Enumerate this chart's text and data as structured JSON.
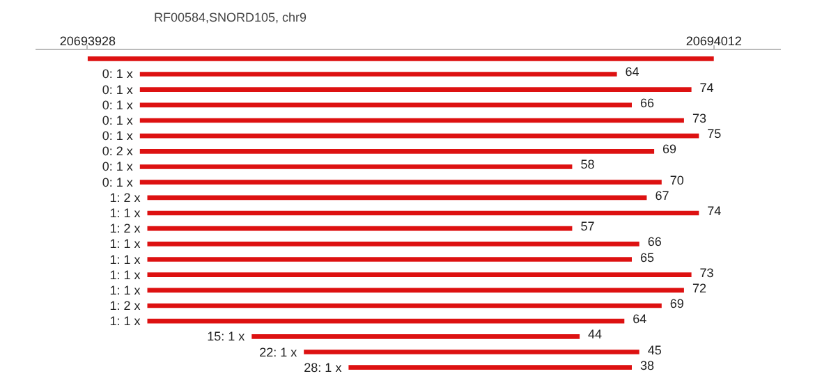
{
  "chart_data": {
    "type": "bar",
    "orientation": "horizontal",
    "title": "RF00584,SNORD105, chr9",
    "categories": [
      null,
      "0: 1 x",
      "0: 1 x",
      "0: 1 x",
      "0: 1 x",
      "0: 1 x",
      "0: 2 x",
      "0: 1 x",
      "0: 1 x",
      "1: 2 x",
      "1: 1 x",
      "1: 2 x",
      "1: 1 x",
      "1: 1 x",
      "1: 1 x",
      "1: 1 x",
      "1: 2 x",
      "1: 1 x",
      "15: 1 x",
      "22: 1 x",
      "28: 1 x"
    ],
    "base": [
      20693928,
      20693935,
      20693935,
      20693935,
      20693935,
      20693935,
      20693935,
      20693935,
      20693935,
      20693936,
      20693936,
      20693936,
      20693936,
      20693936,
      20693936,
      20693936,
      20693936,
      20693936,
      20693950,
      20693957,
      20693963
    ],
    "values": [
      84,
      64,
      74,
      66,
      73,
      75,
      69,
      58,
      70,
      67,
      74,
      57,
      66,
      65,
      73,
      72,
      69,
      64,
      44,
      45,
      38
    ],
    "value_labels": [
      null,
      "64",
      "74",
      "66",
      "73",
      "75",
      "69",
      "58",
      "70",
      "67",
      "74",
      "57",
      "66",
      "65",
      "73",
      "72",
      "69",
      "64",
      "44",
      "45",
      "38"
    ],
    "color": "#dd1111",
    "xlim": [
      20693921,
      20694021
    ],
    "xticks": [
      20693928,
      20694012
    ],
    "tick_labels": "x",
    "grid": false
  }
}
